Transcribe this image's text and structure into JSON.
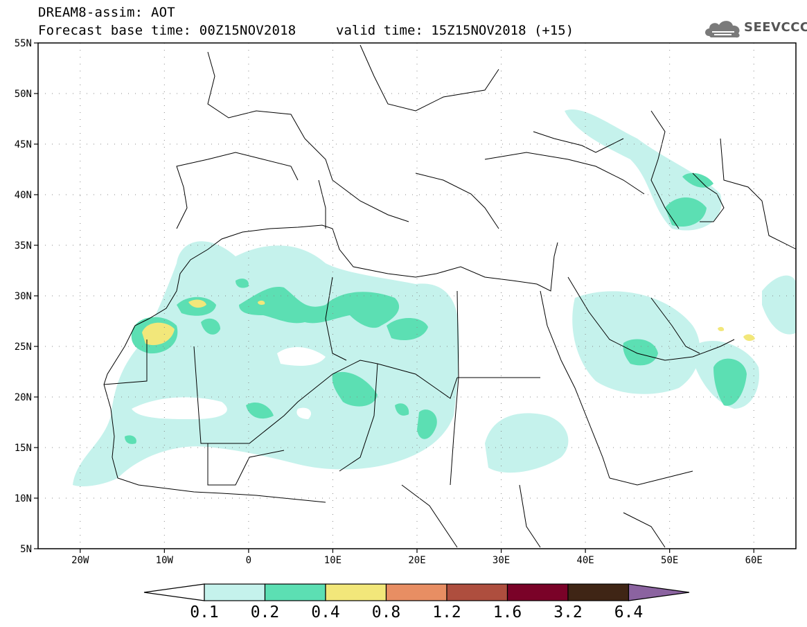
{
  "header": {
    "title_line1": "DREAM8-assim: AOT",
    "title_line2": "Forecast base time: 00Z15NOV2018",
    "valid_time": "valid time: 15Z15NOV2018 (+15)",
    "logo_text": "SEEVCCC"
  },
  "map": {
    "lon_range": [
      -25,
      65
    ],
    "lat_range": [
      5,
      55
    ],
    "lat_labels": [
      "55N",
      "50N",
      "45N",
      "40N",
      "35N",
      "30N",
      "25N",
      "20N",
      "15N",
      "10N",
      "5N"
    ],
    "lat_values": [
      55,
      50,
      45,
      40,
      35,
      30,
      25,
      20,
      15,
      10,
      5
    ],
    "lon_labels": [
      "20W",
      "10W",
      "0",
      "10E",
      "20E",
      "30E",
      "40E",
      "50E",
      "60E"
    ],
    "lon_values": [
      -20,
      -10,
      0,
      10,
      20,
      30,
      40,
      50,
      60
    ]
  },
  "colorbar": {
    "levels": [
      "0.1",
      "0.2",
      "0.4",
      "0.8",
      "1.2",
      "1.6",
      "3.2",
      "6.4"
    ],
    "colors": [
      "#c5f2ec",
      "#5cdfb3",
      "#f2e77a",
      "#e88e63",
      "#ae4e3e",
      "#7a0228",
      "#3f2515"
    ],
    "over_color": "#8b63a0",
    "under_color": "#ffffff"
  },
  "icons": {
    "logo": "cloud-logo-icon"
  }
}
